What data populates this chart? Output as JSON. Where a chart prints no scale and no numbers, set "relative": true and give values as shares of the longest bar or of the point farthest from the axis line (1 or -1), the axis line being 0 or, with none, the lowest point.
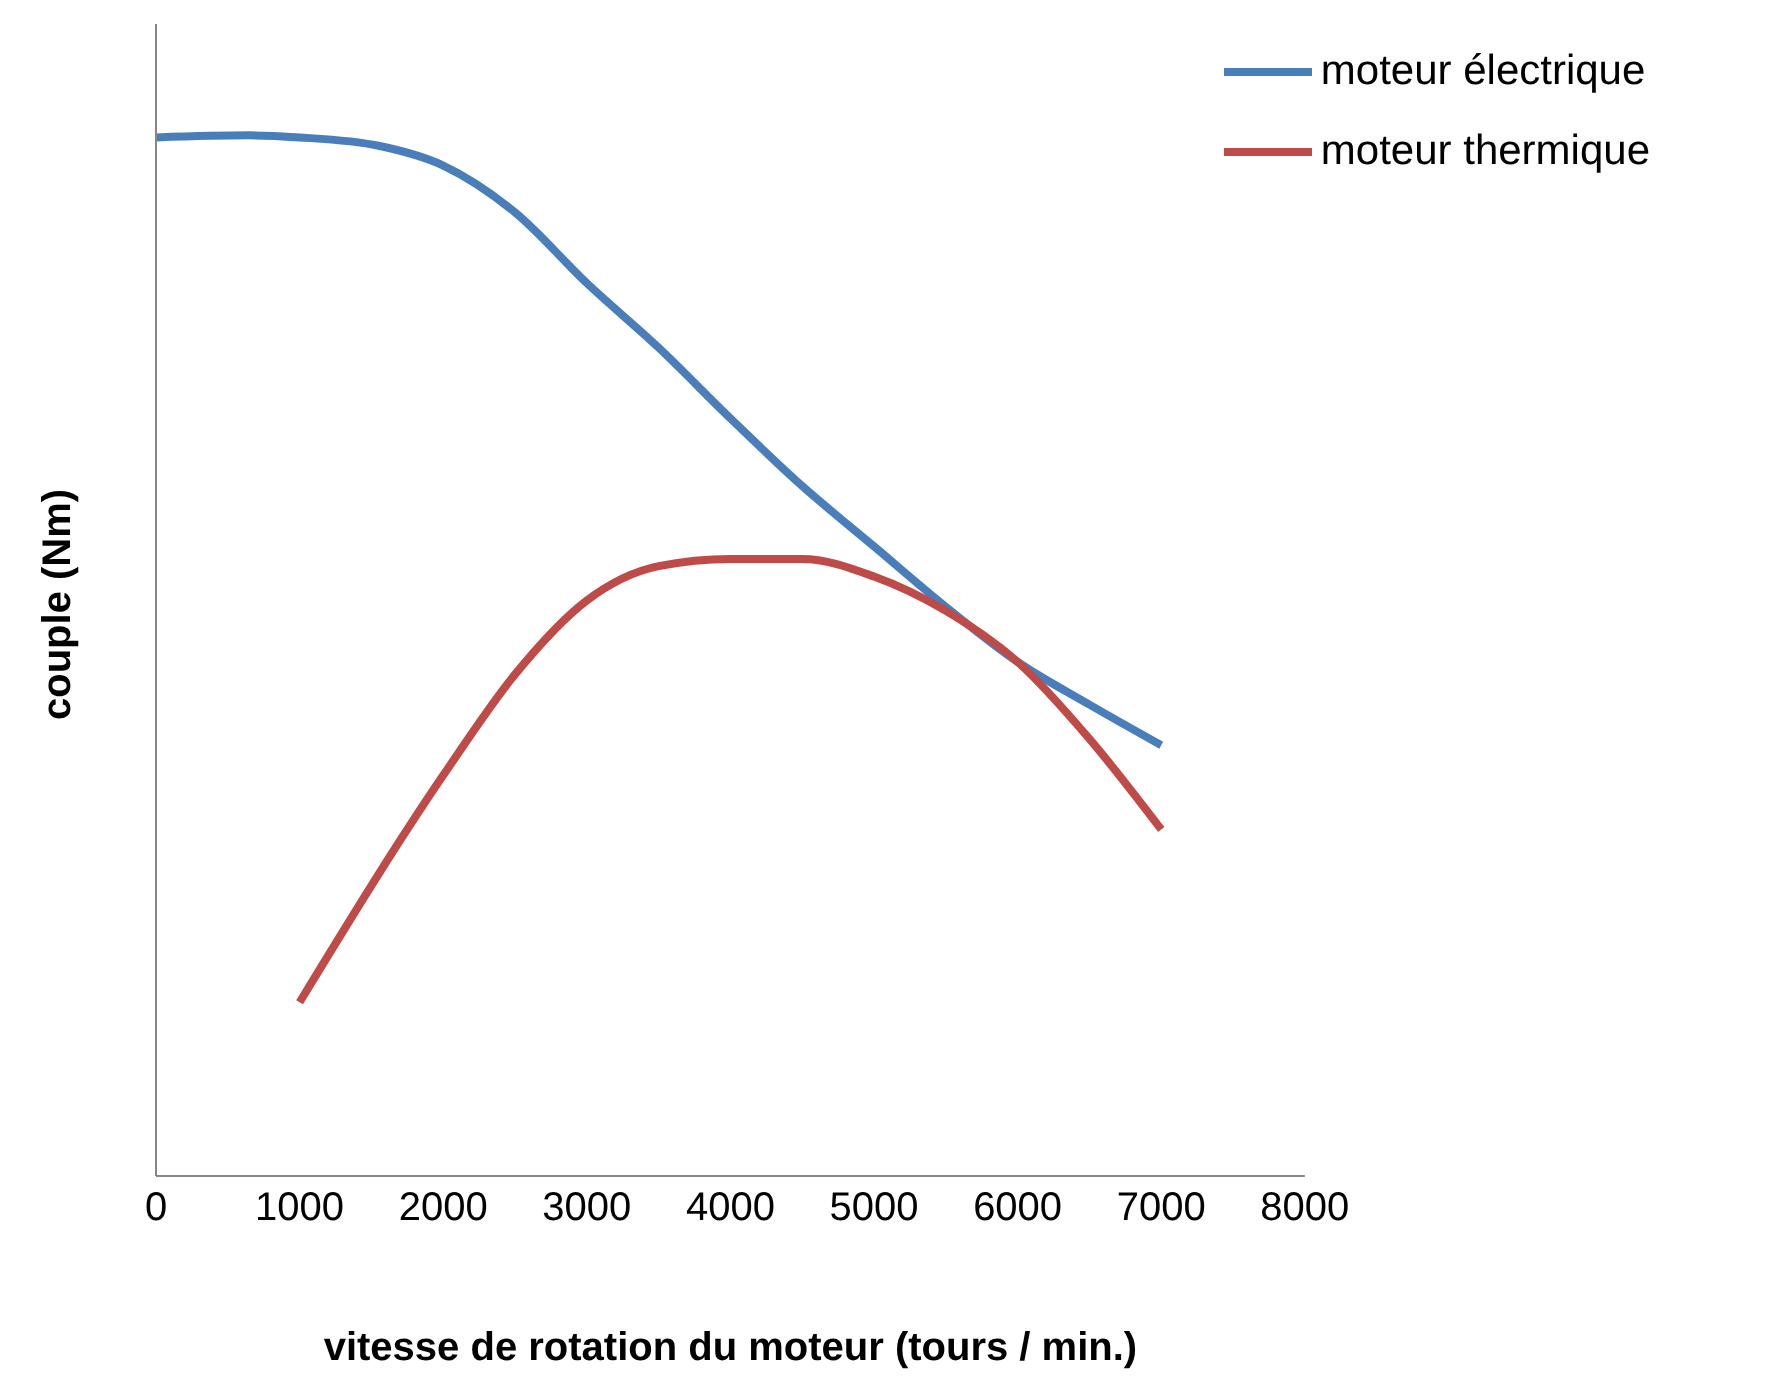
{
  "chart_data": {
    "type": "line",
    "relative": true,
    "xlabel": "vitesse de rotation du moteur (tours / min.)",
    "ylabel": "couple (Nm)",
    "xlim": [
      0,
      8000
    ],
    "xticks": [
      0,
      1000,
      2000,
      3000,
      4000,
      5000,
      6000,
      7000,
      8000
    ],
    "legend": "top right",
    "marker": "none",
    "line_style": "solid",
    "grid": false,
    "tick_labels": "x",
    "series": [
      {
        "name": "moteur électrique",
        "color": "#4a7ebb",
        "x": [
          0,
          650,
          1000,
          1550,
          2000,
          2500,
          3000,
          3500,
          4000,
          4500,
          5000,
          5500,
          6000,
          6500,
          7000
        ],
        "values": [
          0.998,
          1,
          0.998,
          0.99,
          0.971,
          0.926,
          0.858,
          0.796,
          0.728,
          0.663,
          0.605,
          0.547,
          0.494,
          0.453,
          0.414
        ]
      },
      {
        "name": "moteur thermique",
        "color": "#be4b48",
        "x": [
          1000,
          2000,
          2500,
          3000,
          3500,
          4000,
          4500,
          5000,
          5500,
          6000,
          6500,
          7000
        ],
        "values": [
          0.167,
          0.385,
          0.482,
          0.553,
          0.586,
          0.593,
          0.593,
          0.576,
          0.543,
          0.494,
          0.42,
          0.333
        ]
      }
    ]
  }
}
